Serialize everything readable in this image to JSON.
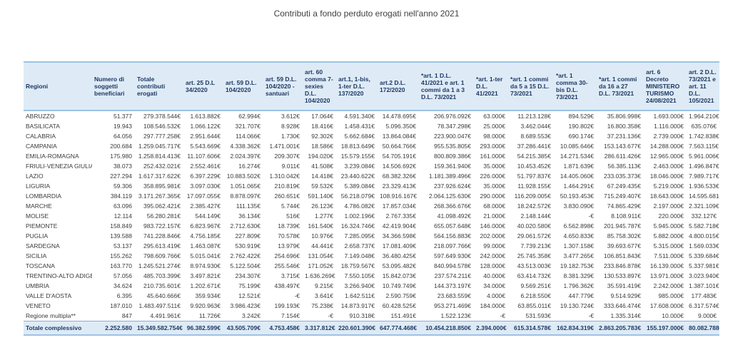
{
  "title": "Contributi a fondo perduto erogati nell'anno 2021",
  "colors": {
    "header_bg": "#DEEBF6",
    "header_text": "#1F3864",
    "border_blue": "#9CC2E5",
    "body_text": "#3A3A3A"
  },
  "table": {
    "columns": [
      "Regioni",
      "Numero di soggetti beneficiari",
      "Totale contributi erogati",
      "art. 25 D.L 34/2020",
      "art. 59 D.L. 104/2020",
      "art. 59 D.L. 104/2020 - santuari",
      "art. 60 comma 7-sexies D.L. 104/2020",
      "art.1, 1-bis, 1-ter D.L. 137/2020",
      "art.2 D.L. 172/2020",
      "*art. 1 D.L. 41/2021 e art. 1 commi da 1 a 3 D.L. 73/2021",
      "*art. 1-ter D.L. 41/2021",
      "*art. 1 commi da 5 a 15 D.L. 73/2021",
      "*art. 1 comma 30-bis D.L. 73/2021",
      "*art. 1 commi da 16 a 27 D.L. 73/2021",
      "art. 6 Decreto MINISTERO TURISMO 24/08/2021",
      "art. 2 D.L. 73/2021 e art. 11 D.L. 105/2021"
    ],
    "rows": [
      [
        "ABRUZZO",
        "51.377",
        "279.378.544€",
        "1.613.882€",
        "62.994€",
        "3.612€",
        "17.064€",
        "4.591.340€",
        "14.478.695€",
        "206.976.092€",
        "63.000€",
        "11.213.128€",
        "894.529€",
        "35.806.998€",
        "1.693.000€",
        "1.964.210€"
      ],
      [
        "BASILICATA",
        "19.943",
        "108.546.532€",
        "1.066.122€",
        "321.707€",
        "8.928€",
        "18.416€",
        "1.458.431€",
        "5.096.350€",
        "78.347.298€",
        "25.000€",
        "3.462.044€",
        "190.802€",
        "16.800.358€",
        "1.116.000€",
        "635.076€"
      ],
      [
        "CALABRIA",
        "64.056",
        "297.777.258€",
        "2.951.644€",
        "114.066€",
        "1.730€",
        "92.302€",
        "5.662.684€",
        "13.864.084€",
        "223.900.047€",
        "98.000€",
        "8.689.553€",
        "690.174€",
        "37.231.136€",
        "2.739.000€",
        "1.742.838€"
      ],
      [
        "CAMPANIA",
        "200.684",
        "1.259.045.717€",
        "5.543.669€",
        "4.338.362€",
        "1.471.001€",
        "18.586€",
        "18.813.649€",
        "50.664.766€",
        "955.535.805€",
        "293.000€",
        "37.286.441€",
        "10.085.646€",
        "153.143.677€",
        "14.288.000€",
        "7.563.115€"
      ],
      [
        "EMILIA-ROMAGNA",
        "175.980",
        "1.258.814.413€",
        "11.107.606€",
        "2.024.397€",
        "209.307€",
        "194.020€",
        "15.579.155€",
        "54.705.191€",
        "800.809.386€",
        "161.000€",
        "54.215.385€",
        "14.271.534€",
        "286.611.426€",
        "12.965.000€",
        "5.961.006€"
      ],
      [
        "FRIULI-VENEZIA GIULIA",
        "38.073",
        "252.432.021€",
        "2.552.461€",
        "16.274€",
        "9.011€",
        "41.508€",
        "3.239.084€",
        "14.506.692€",
        "159.361.940€",
        "35.000€",
        "10.453.452€",
        "1.871.639€",
        "56.385.113€",
        "2.463.000€",
        "1.496.847€"
      ],
      [
        "LAZIO",
        "227.294",
        "1.617.317.622€",
        "6.397.229€",
        "10.883.502€",
        "1.310.042€",
        "14.418€",
        "23.440.622€",
        "68.382.326€",
        "1.181.389.496€",
        "226.000€",
        "51.797.837€",
        "14.405.060€",
        "233.035.373€",
        "18.046.000€",
        "7.989.717€"
      ],
      [
        "LIGURIA",
        "59.306",
        "358.895.981€",
        "3.097.030€",
        "1.051.065€",
        "210.819€",
        "59.532€",
        "5.389.084€",
        "23.329.413€",
        "237.926.624€",
        "35.000€",
        "11.928.155€",
        "1.464.291€",
        "67.249.435€",
        "5.219.000€",
        "1.936.533€"
      ],
      [
        "LOMBARDIA",
        "384.119",
        "3.171.267.365€",
        "17.097.055€",
        "8.878.097€",
        "260.651€",
        "591.140€",
        "56.218.079€",
        "108.916.167€",
        "2.064.125.630€",
        "290.000€",
        "116.209.005€",
        "50.193.453€",
        "715.249.407€",
        "18.643.000€",
        "14.595.681€"
      ],
      [
        "MARCHE",
        "63.096",
        "395.062.421€",
        "2.385.427€",
        "111.135€",
        "5.744€",
        "26.123€",
        "4.786.082€",
        "17.857.034€",
        "268.366.676€",
        "68.000€",
        "18.242.572€",
        "3.830.090€",
        "74.865.429€",
        "2.197.000€",
        "2.321.109€"
      ],
      [
        "MOLISE",
        "12.114",
        "56.280.281€",
        "544.149€",
        "36.134€",
        "516€",
        "1.277€",
        "1.002.196€",
        "2.767.335€",
        "41.098.492€",
        "21.000€",
        "2.148.144€",
        "-€",
        "8.108.911€",
        "220.000€",
        "332.127€"
      ],
      [
        "PIEMONTE",
        "158.849",
        "983.722.157€",
        "6.823.967€",
        "2.712.630€",
        "18.739€",
        "161.540€",
        "16.324.746€",
        "42.419.904€",
        "655.057.648€",
        "146.000€",
        "40.020.580€",
        "6.562.898€",
        "201.945.787€",
        "5.945.000€",
        "5.582.718€"
      ],
      [
        "PUGLIA",
        "139.588",
        "741.228.846€",
        "4.756.185€",
        "227.809€",
        "70.578€",
        "10.976€",
        "7.285.095€",
        "34.366.598€",
        "564.156.883€",
        "202.000€",
        "29.061.572€",
        "4.650.833€",
        "85.758.302€",
        "5.882.000€",
        "4.800.015€"
      ],
      [
        "SARDEGNA",
        "53.137",
        "295.613.419€",
        "1.463.087€",
        "530.919€",
        "13.979€",
        "44.441€",
        "2.658.737€",
        "17.081.409€",
        "218.097.766€",
        "99.000€",
        "7.739.213€",
        "1.307.158€",
        "39.693.677€",
        "5.315.000€",
        "1.569.033€"
      ],
      [
        "SICILIA",
        "155.262",
        "798.609.766€",
        "5.015.041€",
        "2.762.422€",
        "254.696€",
        "131.054€",
        "7.149.048€",
        "36.480.425€",
        "597.649.930€",
        "242.000€",
        "25.745.358€",
        "3.477.265€",
        "106.851.843€",
        "7.511.000€",
        "5.339.684€"
      ],
      [
        "TOSCANA",
        "163.770",
        "1.245.521.274€",
        "8.974.930€",
        "5.122.504€",
        "255.546€",
        "171.052€",
        "18.759.567€",
        "53.095.482€",
        "840.994.578€",
        "128.000€",
        "43.513.003€",
        "19.182.753€",
        "233.846.878€",
        "16.139.000€",
        "5.337.981€"
      ],
      [
        "TRENTINO-ALTO ADIGE",
        "57.056",
        "485.703.399€",
        "3.497.821€",
        "234.307€",
        "3.715€",
        "1.636.269€",
        "7.550.105€",
        "15.842.073€",
        "237.574.211€",
        "40.000€",
        "63.414.732€",
        "8.381.329€",
        "130.533.897€",
        "13.971.000€",
        "3.023.940€"
      ],
      [
        "UMBRIA",
        "34.624",
        "210.735.601€",
        "1.202.671€",
        "75.199€",
        "438.497€",
        "9.215€",
        "3.266.940€",
        "10.749.749€",
        "144.373.197€",
        "34.000€",
        "9.569.251€",
        "1.796.362€",
        "35.591.419€",
        "2.242.000€",
        "1.387.101€"
      ],
      [
        "VALLE D'AOSTA",
        "6.395",
        "45.640.666€",
        "359.934€",
        "12.521€",
        "-€",
        "3.641€",
        "1.642.511€",
        "2.590.759€",
        "23.683.559€",
        "4.000€",
        "6.218.550€",
        "447.779€",
        "9.514.929€",
        "985.000€",
        "177.483€"
      ],
      [
        "VENETO",
        "187.010",
        "1.483.497.511€",
        "9.920.963€",
        "3.986.423€",
        "199.193€",
        "75.238€",
        "14.873.917€",
        "60.428.525€",
        "953.271.469€",
        "184.000€",
        "63.855.011€",
        "19.130.724€",
        "333.646.474€",
        "17.608.000€",
        "6.317.574€"
      ],
      [
        "Regione multipla**",
        "847",
        "4.491.961€",
        "11.726€",
        "3.242€",
        "7.154€",
        "-€",
        "910.318€",
        "151.491€",
        "1.522.123€",
        "-€",
        "531.593€",
        "-€",
        "1.335.314€",
        "10.000€",
        "9.000€"
      ]
    ],
    "total_row": [
      "Totale complessivo",
      "2.252.580",
      "15.349.582.754€",
      "96.382.599€",
      "43.505.709€",
      "4.753.458€",
      "3.317.812€",
      "220.601.390€",
      "647.774.468€",
      "10.454.218.850€",
      "2.394.000€",
      "615.314.578€",
      "162.834.319€",
      "2.863.205.783€",
      "155.197.000€",
      "80.082.788€"
    ]
  }
}
